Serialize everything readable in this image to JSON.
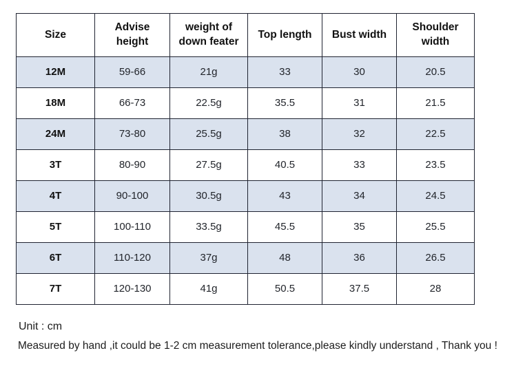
{
  "table": {
    "columns": [
      "Size",
      "Advise height",
      "weight of down feater",
      "Top length",
      "Bust width",
      "Shoulder width"
    ],
    "rows": [
      {
        "cells": [
          "12M",
          "59-66",
          "21g",
          "33",
          "30",
          "20.5"
        ]
      },
      {
        "cells": [
          "18M",
          "66-73",
          "22.5g",
          "35.5",
          "31",
          "21.5"
        ]
      },
      {
        "cells": [
          "24M",
          "73-80",
          "25.5g",
          "38",
          "32",
          "22.5"
        ]
      },
      {
        "cells": [
          "3T",
          "80-90",
          "27.5g",
          "40.5",
          "33",
          "23.5"
        ]
      },
      {
        "cells": [
          "4T",
          "90-100",
          "30.5g",
          "43",
          "34",
          "24.5"
        ]
      },
      {
        "cells": [
          "5T",
          "100-110",
          "33.5g",
          "45.5",
          "35",
          "25.5"
        ]
      },
      {
        "cells": [
          "6T",
          "110-120",
          "37g",
          "48",
          "36",
          "26.5"
        ]
      },
      {
        "cells": [
          "7T",
          "120-130",
          "41g",
          "50.5",
          "37.5",
          "28"
        ]
      }
    ]
  },
  "footer": {
    "unit_note": "Unit : cm",
    "tolerance_note": "Measured by hand ,it could be 1-2 cm measurement tolerance,please kindly understand , Thank you !"
  },
  "colors": {
    "row_shade": "#dae2ee",
    "border": "#1e2230",
    "text": "#1c1c1c",
    "background": "#ffffff"
  }
}
